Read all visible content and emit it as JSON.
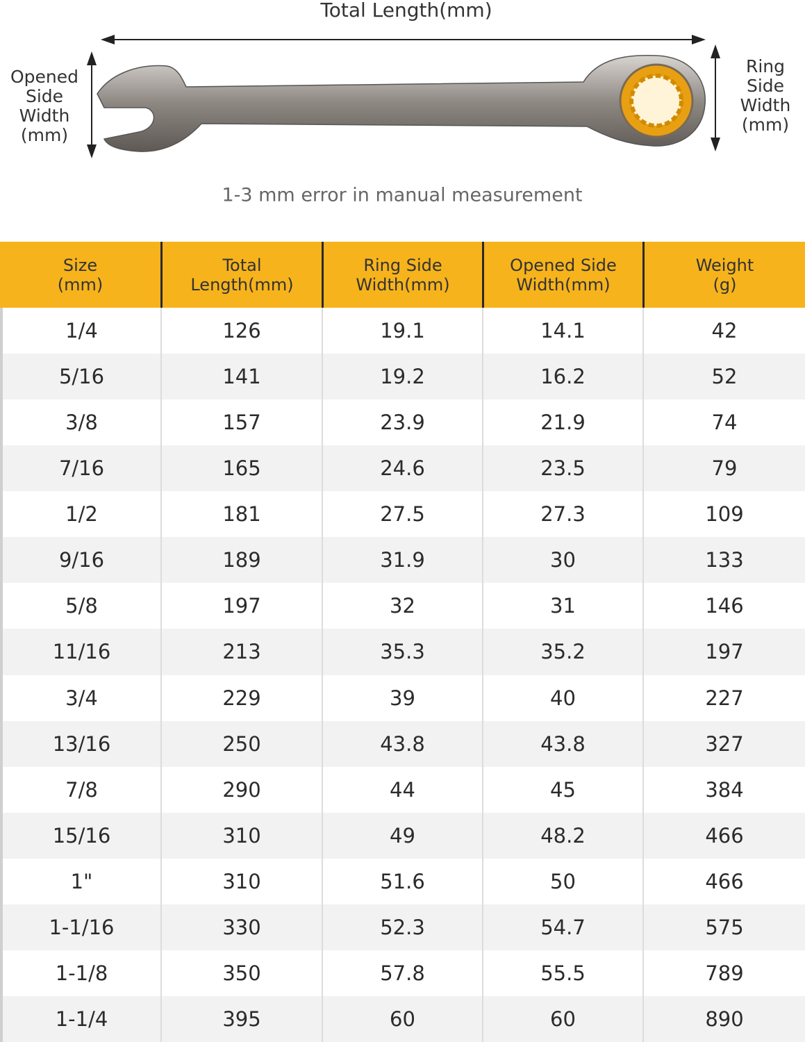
{
  "diagram": {
    "total_length": "Total Length(mm)",
    "opened_side_width": [
      "Opened",
      "Side",
      "Width",
      "(mm)"
    ],
    "ring_side_width": [
      "Ring",
      "Side",
      "Width",
      "(mm)"
    ],
    "note": "1-3 mm error in manual measurement"
  },
  "table": {
    "headers": [
      [
        "Size",
        "(mm)"
      ],
      [
        "Total",
        "Length(mm)"
      ],
      [
        "Ring Side",
        "Width(mm)"
      ],
      [
        "Opened Side",
        "Width(mm)"
      ],
      [
        "Weight",
        "(g)"
      ]
    ],
    "rows": [
      [
        "1/4",
        "126",
        "19.1",
        "14.1",
        "42"
      ],
      [
        "5/16",
        "141",
        "19.2",
        "16.2",
        "52"
      ],
      [
        "3/8",
        "157",
        "23.9",
        "21.9",
        "74"
      ],
      [
        "7/16",
        "165",
        "24.6",
        "23.5",
        "79"
      ],
      [
        "1/2",
        "181",
        "27.5",
        "27.3",
        "109"
      ],
      [
        "9/16",
        "189",
        "31.9",
        "30",
        "133"
      ],
      [
        "5/8",
        "197",
        "32",
        "31",
        "146"
      ],
      [
        "11/16",
        "213",
        "35.3",
        "35.2",
        "197"
      ],
      [
        "3/4",
        "229",
        "39",
        "40",
        "227"
      ],
      [
        "13/16",
        "250",
        "43.8",
        "43.8",
        "327"
      ],
      [
        "7/8",
        "290",
        "44",
        "45",
        "384"
      ],
      [
        "15/16",
        "310",
        "49",
        "48.2",
        "466"
      ],
      [
        "1\"",
        "310",
        "51.6",
        "50",
        "466"
      ],
      [
        "1-1/16",
        "330",
        "52.3",
        "54.7",
        "575"
      ],
      [
        "1-1/8",
        "350",
        "57.8",
        "55.5",
        "789"
      ],
      [
        "1-1/4",
        "395",
        "60",
        "60",
        "890"
      ]
    ]
  }
}
